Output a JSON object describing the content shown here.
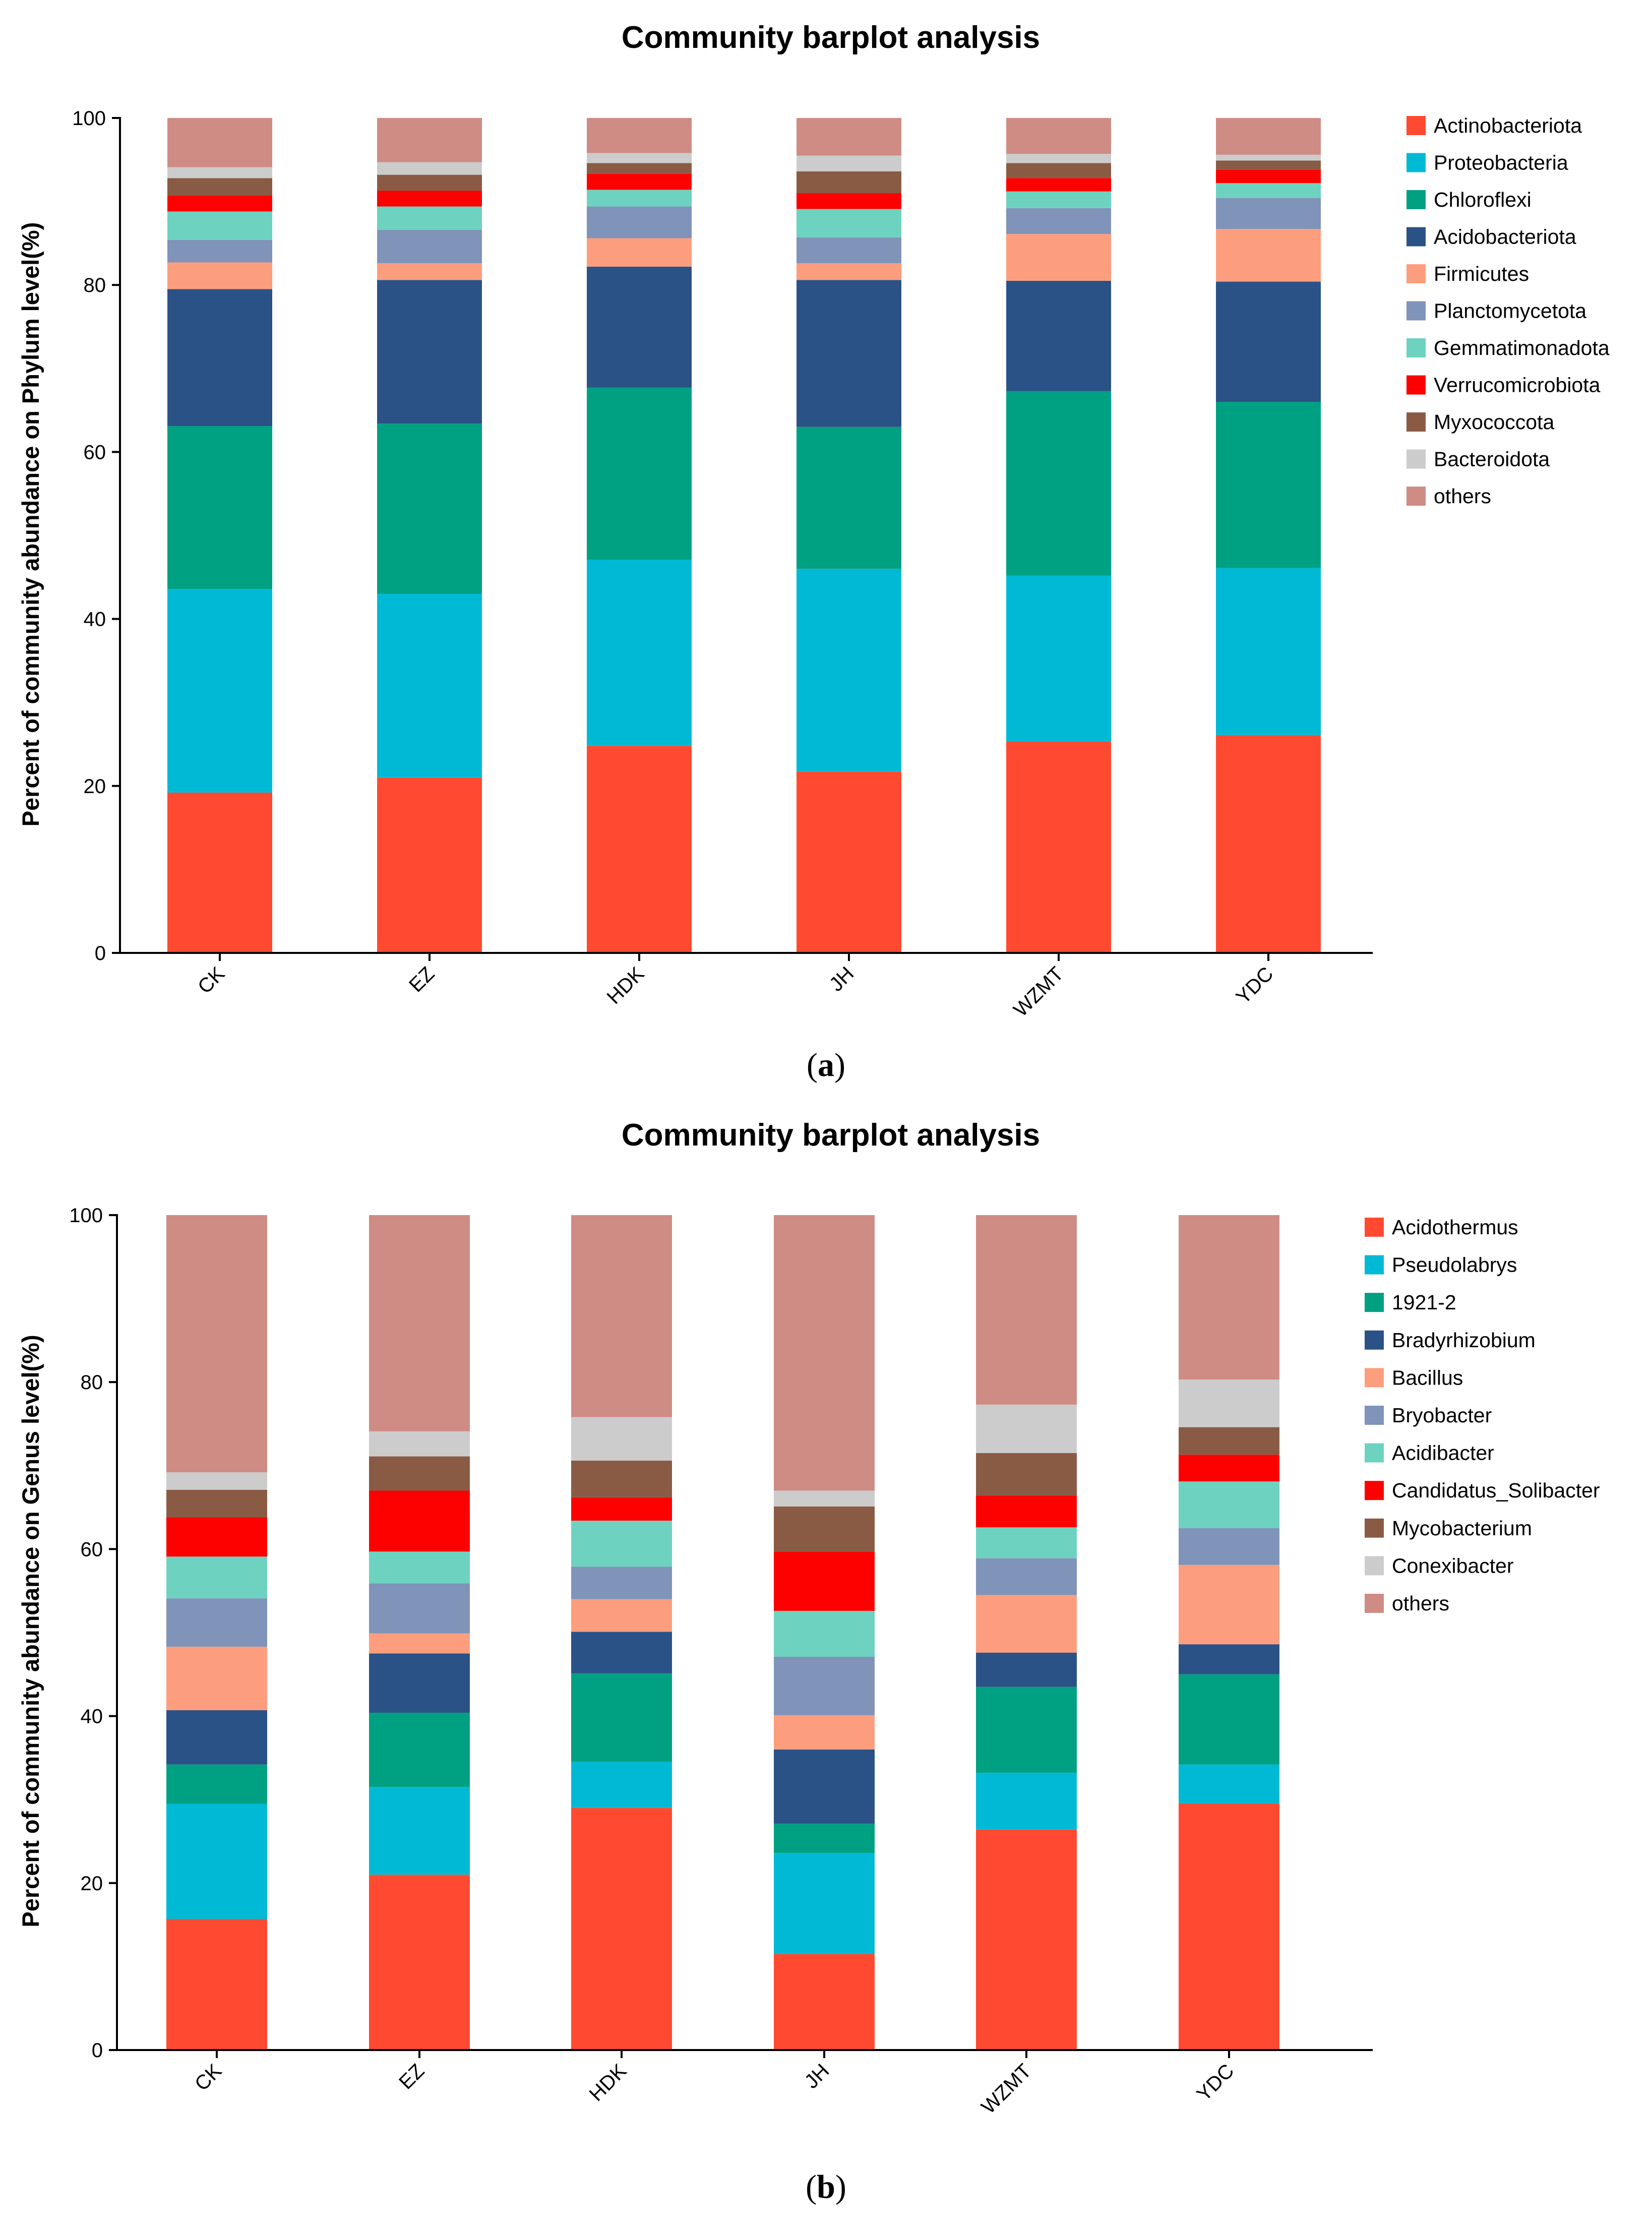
{
  "chart_data": [
    {
      "type": "bar",
      "stacked": true,
      "title": "Community barplot analysis",
      "xlabel": "",
      "ylabel": "Percent of community abundance on Phylum level(%)",
      "ylim": [
        0,
        100
      ],
      "yticks": [
        0,
        20,
        40,
        60,
        80,
        100
      ],
      "legend_position": "right",
      "categories": [
        "CK",
        "EZ",
        "HDK",
        "JH",
        "WZMT",
        "YDC"
      ],
      "series": [
        {
          "name": "Actinobacteriota",
          "color": "#ff4a31",
          "values": [
            19.2,
            21.0,
            24.8,
            21.7,
            25.3,
            26.1
          ]
        },
        {
          "name": "Proteobacteria",
          "color": "#00bad5",
          "values": [
            24.4,
            22.0,
            22.3,
            24.3,
            19.9,
            20.0
          ]
        },
        {
          "name": "Chloroflexi",
          "color": "#00a083",
          "values": [
            19.5,
            20.4,
            20.6,
            17.0,
            22.1,
            19.9
          ]
        },
        {
          "name": "Acidobacteriota",
          "color": "#2b5286",
          "values": [
            16.4,
            17.2,
            14.5,
            17.6,
            13.2,
            14.4
          ]
        },
        {
          "name": "Firmicutes",
          "color": "#fc9e7e",
          "values": [
            3.2,
            2.0,
            3.4,
            2.0,
            5.6,
            6.3
          ]
        },
        {
          "name": "Planctomycetota",
          "color": "#8093b9",
          "values": [
            2.7,
            4.0,
            3.8,
            3.1,
            3.1,
            3.7
          ]
        },
        {
          "name": "Gemmatimonadota",
          "color": "#6ed2c0",
          "values": [
            3.4,
            2.8,
            2.0,
            3.4,
            2.0,
            1.8
          ]
        },
        {
          "name": "Verrucomicrobiota",
          "color": "#fd0000",
          "values": [
            1.9,
            1.9,
            1.9,
            1.9,
            1.6,
            1.6
          ]
        },
        {
          "name": "Myxococcota",
          "color": "#8a5b44",
          "values": [
            2.1,
            1.9,
            1.3,
            2.6,
            1.8,
            1.1
          ]
        },
        {
          "name": "Bacteroidota",
          "color": "#cccccc",
          "values": [
            1.3,
            1.5,
            1.2,
            1.9,
            1.1,
            0.7
          ]
        },
        {
          "name": "others",
          "color": "#ce8c84",
          "values": [
            5.9,
            5.3,
            4.2,
            4.5,
            4.3,
            4.4
          ]
        }
      ]
    },
    {
      "type": "bar",
      "stacked": true,
      "title": "Community barplot analysis",
      "xlabel": "",
      "ylabel": "Percent of community abundance on Genus level(%)",
      "ylim": [
        0,
        100
      ],
      "yticks": [
        0,
        20,
        40,
        60,
        80,
        100
      ],
      "legend_position": "right",
      "categories": [
        "CK",
        "EZ",
        "HDK",
        "JH",
        "WZMT",
        "YDC"
      ],
      "series": [
        {
          "name": "Acidothermus",
          "color": "#ff4a31",
          "values": [
            15.7,
            21.0,
            29.0,
            11.5,
            26.4,
            29.5
          ]
        },
        {
          "name": "Pseudolabrys",
          "color": "#00bad5",
          "values": [
            13.8,
            10.5,
            5.5,
            12.1,
            6.8,
            4.7
          ]
        },
        {
          "name": "1921-2",
          "color": "#00a083",
          "values": [
            4.7,
            8.9,
            10.6,
            3.5,
            10.3,
            10.8
          ]
        },
        {
          "name": "Bradyrhizobium",
          "color": "#2b5286",
          "values": [
            6.5,
            7.1,
            5.0,
            8.9,
            4.1,
            3.6
          ]
        },
        {
          "name": "Bacillus",
          "color": "#fc9e7e",
          "values": [
            7.6,
            2.4,
            3.9,
            4.1,
            6.9,
            9.5
          ]
        },
        {
          "name": "Bryobacter",
          "color": "#8093b9",
          "values": [
            5.8,
            6.0,
            3.9,
            7.0,
            4.4,
            4.4
          ]
        },
        {
          "name": "Acidibacter",
          "color": "#6ed2c0",
          "values": [
            5.0,
            3.8,
            5.5,
            5.5,
            3.7,
            5.6
          ]
        },
        {
          "name": "Candidatus_Solibacter",
          "color": "#fd0000",
          "values": [
            4.7,
            7.3,
            2.8,
            7.1,
            3.8,
            3.2
          ]
        },
        {
          "name": "Mycobacterium",
          "color": "#8a5b44",
          "values": [
            3.3,
            4.1,
            4.4,
            5.4,
            5.1,
            3.3
          ]
        },
        {
          "name": "Conexibacter",
          "color": "#cccccc",
          "values": [
            2.1,
            3.0,
            5.2,
            1.9,
            5.8,
            5.7
          ]
        },
        {
          "name": "others",
          "color": "#ce8c84",
          "values": [
            30.8,
            25.9,
            24.2,
            33.0,
            22.7,
            19.7
          ]
        }
      ]
    }
  ],
  "captions": {
    "a": {
      "open": "(",
      "letter": "a",
      "close": ")"
    },
    "b": {
      "open": "(",
      "letter": "b",
      "close": ")"
    }
  }
}
